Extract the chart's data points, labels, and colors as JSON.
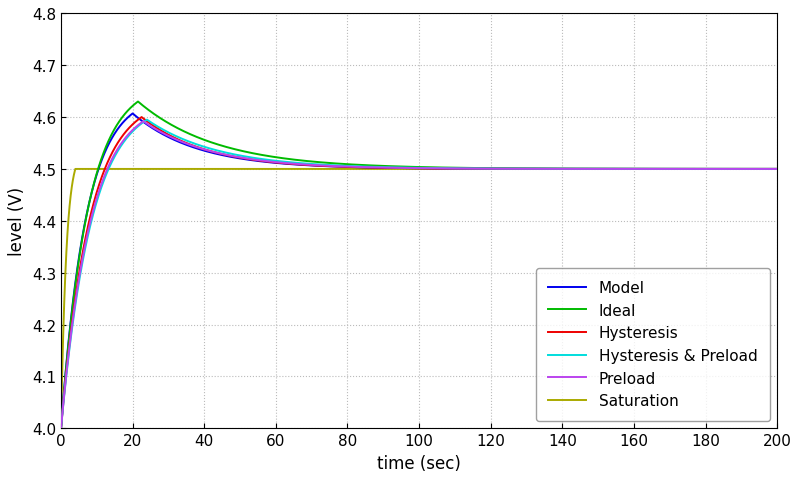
{
  "title": "",
  "xlabel": "time (sec)",
  "ylabel": "level (V)",
  "xlim": [
    0,
    200
  ],
  "ylim": [
    4.0,
    4.8
  ],
  "xticks": [
    0,
    20,
    40,
    60,
    80,
    100,
    120,
    140,
    160,
    180,
    200
  ],
  "yticks": [
    4.0,
    4.1,
    4.2,
    4.3,
    4.4,
    4.5,
    4.6,
    4.7,
    4.8
  ],
  "steady_state": 4.5,
  "start_val": 4.0,
  "lines": [
    {
      "label": "Model",
      "color": "#0000EE",
      "peak": 4.607,
      "peak_t": 20.0,
      "tau_rise": 7.0,
      "tau_fall": 18.0,
      "zorder": 3
    },
    {
      "label": "Ideal",
      "color": "#00BB00",
      "peak": 4.63,
      "peak_t": 21.5,
      "tau_rise": 7.5,
      "tau_fall": 22.0,
      "zorder": 4
    },
    {
      "label": "Hysteresis",
      "color": "#EE0000",
      "peak": 4.6,
      "peak_t": 22.5,
      "tau_rise": 8.0,
      "tau_fall": 18.0,
      "zorder": 5
    },
    {
      "label": "Hysteresis & Preload",
      "color": "#00DDDD",
      "peak": 4.595,
      "peak_t": 24.0,
      "tau_rise": 8.5,
      "tau_fall": 20.0,
      "zorder": 6
    },
    {
      "label": "Preload",
      "color": "#BB44EE",
      "peak": 4.592,
      "peak_t": 23.0,
      "tau_rise": 8.2,
      "tau_fall": 19.0,
      "zorder": 7
    },
    {
      "label": "Saturation",
      "color": "#AAAA00",
      "peak": 4.5,
      "peak_t": 4.0,
      "tau_rise": 1.5,
      "tau_fall": 1.0,
      "zorder": 2
    }
  ],
  "legend_loc": "lower right",
  "linewidth": 1.4,
  "figsize": [
    8.0,
    4.81
  ],
  "dpi": 100,
  "bg_color": "#FFFFFF",
  "grid_color": "#BBBBBB",
  "grid_style": ":"
}
